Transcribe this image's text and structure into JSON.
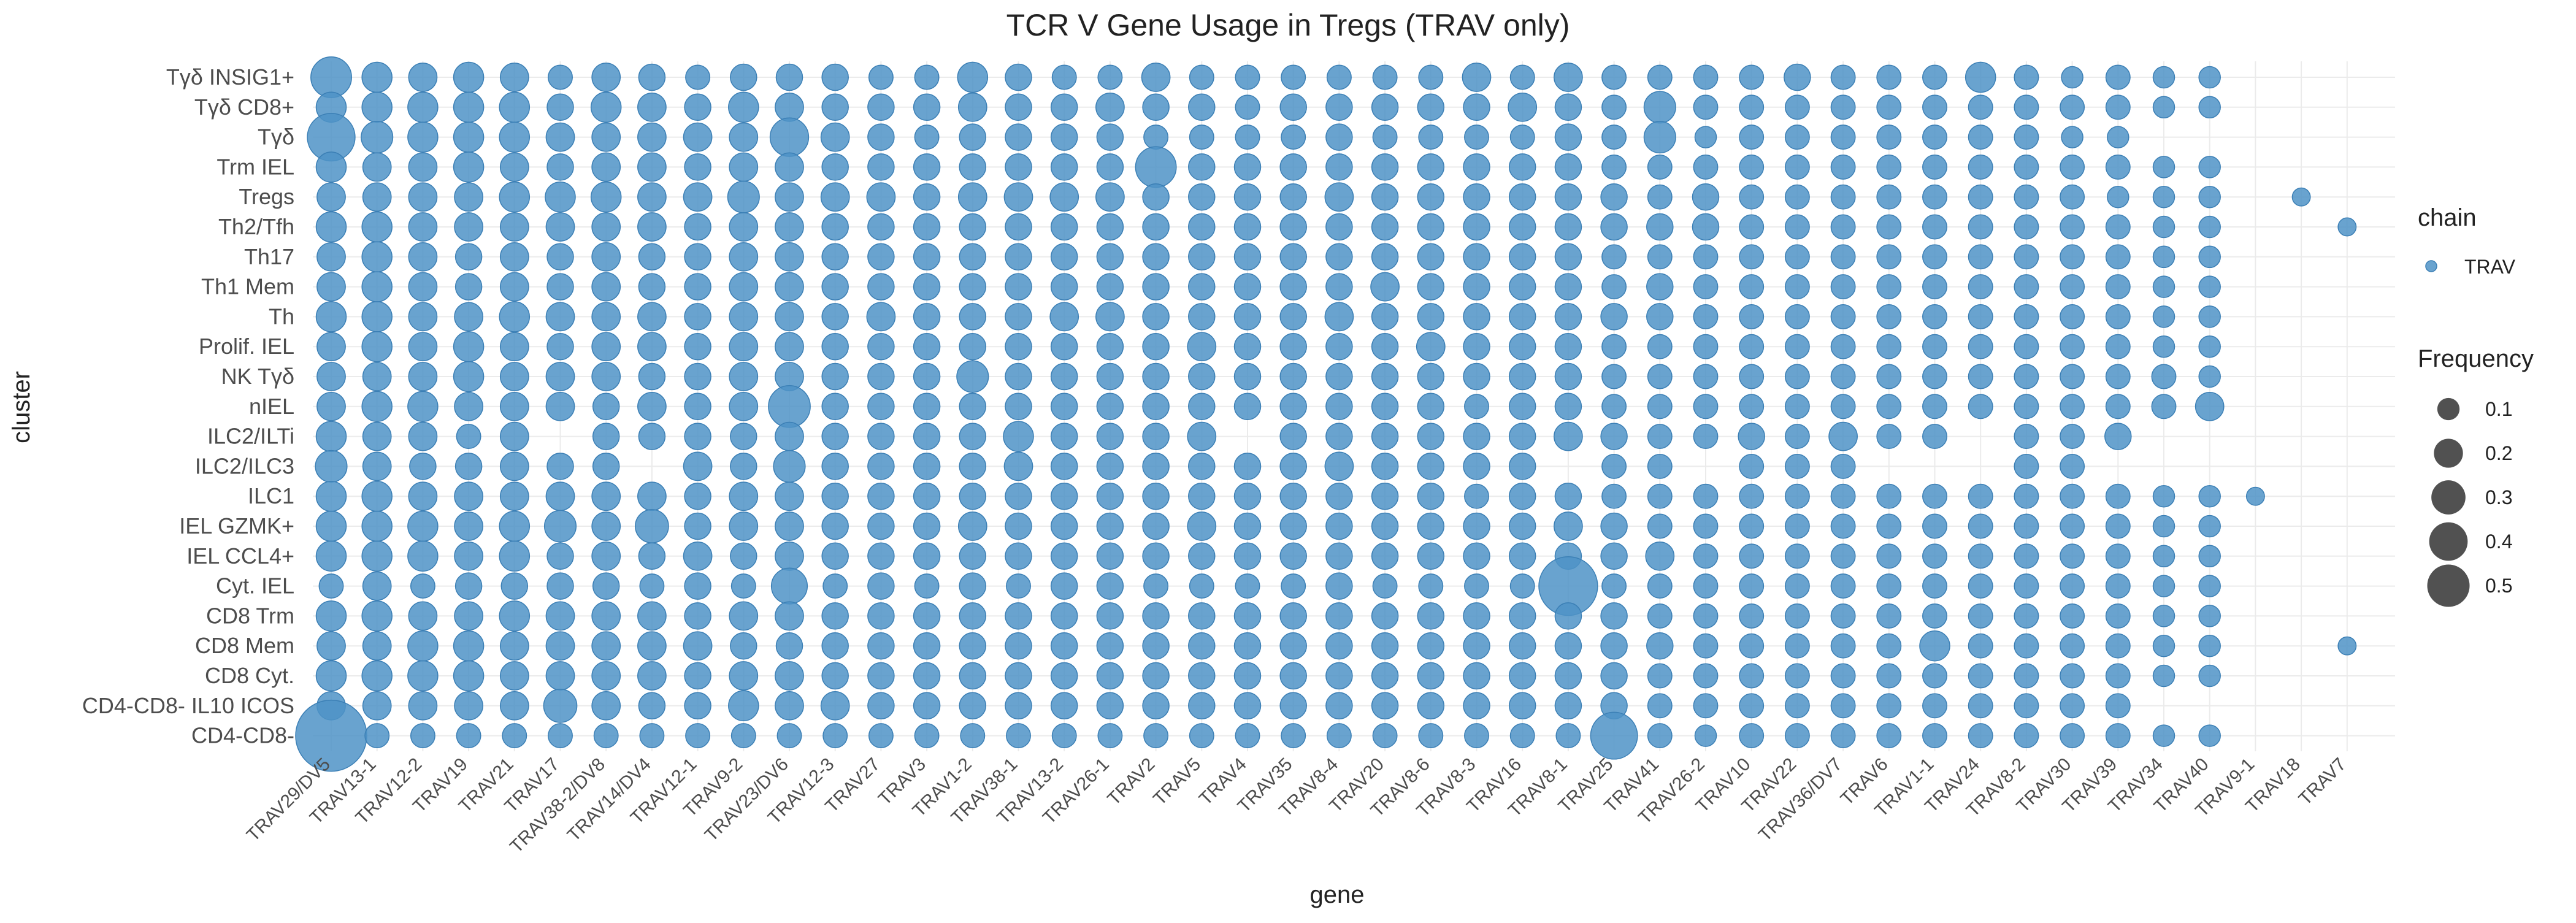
{
  "chart_data": {
    "type": "scatter",
    "title": "TCR V Gene Usage in Tregs (TRAV only)",
    "xlabel": "gene",
    "ylabel": "cluster",
    "x_categories": [
      "TRAV29/DV5",
      "TRAV13-1",
      "TRAV12-2",
      "TRAV19",
      "TRAV21",
      "TRAV17",
      "TRAV38-2/DV8",
      "TRAV14/DV4",
      "TRAV12-1",
      "TRAV9-2",
      "TRAV23/DV6",
      "TRAV12-3",
      "TRAV27",
      "TRAV3",
      "TRAV1-2",
      "TRAV38-1",
      "TRAV13-2",
      "TRAV26-1",
      "TRAV2",
      "TRAV5",
      "TRAV4",
      "TRAV35",
      "TRAV8-4",
      "TRAV20",
      "TRAV8-6",
      "TRAV8-3",
      "TRAV16",
      "TRAV8-1",
      "TRAV25",
      "TRAV41",
      "TRAV26-2",
      "TRAV10",
      "TRAV22",
      "TRAV36/DV7",
      "TRAV6",
      "TRAV1-1",
      "TRAV24",
      "TRAV8-2",
      "TRAV30",
      "TRAV39",
      "TRAV34",
      "TRAV40",
      "TRAV9-1",
      "TRAV18",
      "TRAV7"
    ],
    "y_categories": [
      "Tγδ INSIG1+",
      "Tγδ CD8+",
      "Tγδ",
      "Trm IEL",
      "Tregs",
      "Th2/Tfh",
      "Th17",
      "Th1 Mem",
      "Th",
      "Prolif. IEL",
      "NK Tγδ",
      "nIEL",
      "ILC2/ILTi",
      "ILC2/ILC3",
      "ILC1",
      "IEL GZMK+",
      "IEL CCL4+",
      "Cyt. IEL",
      "CD8 Trm",
      "CD8 Mem",
      "CD8 Cyt.",
      "CD4-CD8- IL10 ICOS",
      "CD4-CD8-"
    ],
    "frequency": [
      [
        0.14,
        0.06,
        0.05,
        0.06,
        0.05,
        0.03,
        0.05,
        0.04,
        0.03,
        0.04,
        0.04,
        0.04,
        0.03,
        0.03,
        0.06,
        0.04,
        0.03,
        0.03,
        0.05,
        0.03,
        0.03,
        0.03,
        0.03,
        0.03,
        0.03,
        0.05,
        0.03,
        0.05,
        0.03,
        0.03,
        0.03,
        0.03,
        0.04,
        0.03,
        0.03,
        0.03,
        0.06,
        0.03,
        0.02,
        0.03,
        0.02,
        0.02,
        0,
        0,
        0
      ],
      [
        0.06,
        0.06,
        0.06,
        0.06,
        0.06,
        0.04,
        0.06,
        0.05,
        0.04,
        0.06,
        0.05,
        0.04,
        0.04,
        0.04,
        0.05,
        0.04,
        0.04,
        0.05,
        0.04,
        0.04,
        0.03,
        0.04,
        0.04,
        0.04,
        0.04,
        0.04,
        0.05,
        0.04,
        0.03,
        0.07,
        0.03,
        0.03,
        0.03,
        0.03,
        0.03,
        0.03,
        0.03,
        0.03,
        0.03,
        0.03,
        0.02,
        0.02,
        0,
        0,
        0
      ],
      [
        0.21,
        0.07,
        0.06,
        0.06,
        0.06,
        0.05,
        0.05,
        0.05,
        0.05,
        0.05,
        0.12,
        0.05,
        0.04,
        0.03,
        0.04,
        0.04,
        0.04,
        0.04,
        0.03,
        0.03,
        0.03,
        0.03,
        0.04,
        0.03,
        0.03,
        0.03,
        0.03,
        0.04,
        0.03,
        0.07,
        0.02,
        0.03,
        0.03,
        0.03,
        0.03,
        0.03,
        0.03,
        0.03,
        0.02,
        0.02,
        0,
        0,
        0,
        0,
        0
      ],
      [
        0.06,
        0.05,
        0.05,
        0.06,
        0.05,
        0.04,
        0.05,
        0.05,
        0.04,
        0.05,
        0.05,
        0.04,
        0.04,
        0.04,
        0.04,
        0.04,
        0.04,
        0.04,
        0.14,
        0.04,
        0.04,
        0.04,
        0.04,
        0.04,
        0.04,
        0.04,
        0.04,
        0.04,
        0.03,
        0.03,
        0.03,
        0.03,
        0.03,
        0.03,
        0.03,
        0.03,
        0.03,
        0.03,
        0.03,
        0.03,
        0.02,
        0.02,
        0,
        0,
        0
      ],
      [
        0.05,
        0.05,
        0.05,
        0.05,
        0.06,
        0.06,
        0.06,
        0.05,
        0.05,
        0.07,
        0.05,
        0.05,
        0.05,
        0.04,
        0.05,
        0.05,
        0.05,
        0.05,
        0.04,
        0.04,
        0.04,
        0.04,
        0.05,
        0.04,
        0.04,
        0.04,
        0.04,
        0.04,
        0.04,
        0.03,
        0.04,
        0.03,
        0.03,
        0.03,
        0.03,
        0.03,
        0.03,
        0.03,
        0.03,
        0.02,
        0.02,
        0.02,
        0,
        0.01,
        0
      ],
      [
        0.06,
        0.06,
        0.05,
        0.05,
        0.05,
        0.05,
        0.05,
        0.05,
        0.04,
        0.05,
        0.05,
        0.04,
        0.04,
        0.04,
        0.04,
        0.04,
        0.04,
        0.04,
        0.04,
        0.04,
        0.04,
        0.04,
        0.04,
        0.04,
        0.04,
        0.04,
        0.04,
        0.04,
        0.04,
        0.04,
        0.04,
        0.03,
        0.03,
        0.03,
        0.03,
        0.03,
        0.03,
        0.03,
        0.03,
        0.03,
        0.02,
        0.02,
        0,
        0,
        0.01
      ],
      [
        0.05,
        0.06,
        0.05,
        0.04,
        0.05,
        0.04,
        0.05,
        0.04,
        0.04,
        0.05,
        0.05,
        0.04,
        0.04,
        0.04,
        0.04,
        0.04,
        0.04,
        0.04,
        0.04,
        0.04,
        0.04,
        0.04,
        0.04,
        0.04,
        0.04,
        0.04,
        0.04,
        0.04,
        0.03,
        0.03,
        0.03,
        0.03,
        0.03,
        0.03,
        0.03,
        0.03,
        0.03,
        0.03,
        0.03,
        0.03,
        0.02,
        0.02,
        0,
        0,
        0
      ],
      [
        0.05,
        0.06,
        0.05,
        0.04,
        0.05,
        0.04,
        0.05,
        0.04,
        0.04,
        0.05,
        0.05,
        0.04,
        0.04,
        0.04,
        0.04,
        0.04,
        0.04,
        0.04,
        0.04,
        0.04,
        0.04,
        0.04,
        0.04,
        0.05,
        0.04,
        0.04,
        0.04,
        0.04,
        0.03,
        0.04,
        0.03,
        0.03,
        0.03,
        0.03,
        0.03,
        0.03,
        0.03,
        0.03,
        0.03,
        0.03,
        0.02,
        0.02,
        0,
        0,
        0
      ],
      [
        0.06,
        0.06,
        0.05,
        0.05,
        0.06,
        0.05,
        0.05,
        0.05,
        0.04,
        0.05,
        0.05,
        0.04,
        0.05,
        0.04,
        0.04,
        0.04,
        0.05,
        0.05,
        0.04,
        0.04,
        0.04,
        0.04,
        0.05,
        0.04,
        0.04,
        0.04,
        0.04,
        0.04,
        0.04,
        0.04,
        0.03,
        0.03,
        0.03,
        0.03,
        0.03,
        0.03,
        0.03,
        0.03,
        0.03,
        0.03,
        0.02,
        0.02,
        0,
        0,
        0
      ],
      [
        0.05,
        0.06,
        0.05,
        0.06,
        0.05,
        0.04,
        0.05,
        0.05,
        0.04,
        0.05,
        0.05,
        0.04,
        0.04,
        0.04,
        0.04,
        0.04,
        0.04,
        0.04,
        0.04,
        0.05,
        0.04,
        0.04,
        0.04,
        0.04,
        0.05,
        0.04,
        0.04,
        0.04,
        0.03,
        0.03,
        0.03,
        0.03,
        0.03,
        0.03,
        0.03,
        0.03,
        0.03,
        0.03,
        0.03,
        0.03,
        0.02,
        0.02,
        0,
        0,
        0
      ],
      [
        0.05,
        0.05,
        0.05,
        0.06,
        0.05,
        0.05,
        0.05,
        0.04,
        0.04,
        0.05,
        0.05,
        0.04,
        0.04,
        0.04,
        0.07,
        0.04,
        0.04,
        0.04,
        0.04,
        0.04,
        0.04,
        0.04,
        0.04,
        0.04,
        0.04,
        0.04,
        0.04,
        0.04,
        0.03,
        0.03,
        0.03,
        0.03,
        0.03,
        0.03,
        0.03,
        0.03,
        0.03,
        0.03,
        0.03,
        0.03,
        0.03,
        0.02,
        0,
        0,
        0
      ],
      [
        0.05,
        0.06,
        0.06,
        0.05,
        0.05,
        0.05,
        0.04,
        0.05,
        0.04,
        0.05,
        0.15,
        0.04,
        0.04,
        0.04,
        0.04,
        0.04,
        0.04,
        0.04,
        0.04,
        0.04,
        0.04,
        0.04,
        0.04,
        0.04,
        0.04,
        0.03,
        0.04,
        0.04,
        0.03,
        0.03,
        0.03,
        0.03,
        0.03,
        0.03,
        0.03,
        0.03,
        0.03,
        0.03,
        0.03,
        0.03,
        0.03,
        0.05,
        0,
        0,
        0
      ],
      [
        0.06,
        0.05,
        0.05,
        0.03,
        0.05,
        0,
        0.04,
        0.04,
        0.04,
        0.04,
        0.05,
        0.04,
        0.04,
        0.04,
        0.04,
        0.06,
        0.04,
        0.04,
        0.04,
        0.05,
        0,
        0.04,
        0.04,
        0.04,
        0.04,
        0.04,
        0.04,
        0.05,
        0.04,
        0.03,
        0.03,
        0.04,
        0.03,
        0.05,
        0.03,
        0.03,
        0,
        0.03,
        0.03,
        0.04,
        0,
        0,
        0,
        0,
        0
      ],
      [
        0.07,
        0.05,
        0.04,
        0.04,
        0.05,
        0.04,
        0.04,
        0,
        0.05,
        0.04,
        0.07,
        0.04,
        0.04,
        0.04,
        0.04,
        0.05,
        0.04,
        0.04,
        0.04,
        0.04,
        0.04,
        0.04,
        0.05,
        0.04,
        0.04,
        0.04,
        0.04,
        0,
        0.03,
        0.03,
        0,
        0.03,
        0.03,
        0.03,
        0,
        0,
        0,
        0.03,
        0.03,
        0,
        0,
        0,
        0,
        0,
        0
      ],
      [
        0.06,
        0.06,
        0.05,
        0.05,
        0.05,
        0.05,
        0.05,
        0.05,
        0.04,
        0.05,
        0.05,
        0.04,
        0.04,
        0.04,
        0.04,
        0.04,
        0.04,
        0.04,
        0.04,
        0.04,
        0.04,
        0.04,
        0.04,
        0.04,
        0.04,
        0.03,
        0.04,
        0.04,
        0.03,
        0.03,
        0.03,
        0.03,
        0.03,
        0.03,
        0.03,
        0.03,
        0.03,
        0.03,
        0.03,
        0.03,
        0.02,
        0.02,
        0.01,
        0,
        0
      ],
      [
        0.06,
        0.06,
        0.06,
        0.05,
        0.06,
        0.07,
        0.05,
        0.08,
        0.04,
        0.05,
        0.05,
        0.04,
        0.04,
        0.04,
        0.05,
        0.04,
        0.04,
        0.04,
        0.04,
        0.05,
        0.04,
        0.04,
        0.04,
        0.04,
        0.04,
        0.04,
        0.04,
        0.05,
        0.04,
        0.03,
        0.03,
        0.03,
        0.03,
        0.03,
        0.03,
        0.03,
        0.03,
        0.03,
        0.03,
        0.03,
        0.02,
        0.02,
        0,
        0,
        0
      ],
      [
        0.06,
        0.06,
        0.06,
        0.05,
        0.06,
        0.04,
        0.05,
        0.04,
        0.05,
        0.04,
        0.05,
        0.04,
        0.04,
        0.04,
        0.04,
        0.04,
        0.04,
        0.04,
        0.04,
        0.04,
        0.04,
        0.04,
        0.04,
        0.04,
        0.04,
        0.04,
        0.04,
        0.04,
        0.04,
        0.05,
        0.03,
        0.03,
        0.03,
        0.03,
        0.03,
        0.03,
        0.03,
        0.03,
        0.03,
        0.03,
        0.02,
        0.02,
        0,
        0,
        0
      ],
      [
        0.03,
        0.05,
        0.03,
        0.04,
        0.04,
        0.04,
        0.04,
        0.03,
        0.04,
        0.03,
        0.1,
        0.03,
        0.04,
        0.03,
        0.04,
        0.03,
        0.04,
        0.04,
        0.03,
        0.03,
        0.03,
        0.03,
        0.04,
        0.03,
        0.03,
        0.03,
        0.03,
        0.35,
        0.03,
        0.03,
        0.03,
        0.03,
        0.03,
        0.03,
        0.03,
        0.03,
        0.03,
        0.03,
        0.03,
        0.03,
        0.02,
        0.02,
        0,
        0,
        0
      ],
      [
        0.06,
        0.06,
        0.05,
        0.05,
        0.06,
        0.05,
        0.05,
        0.05,
        0.04,
        0.05,
        0.05,
        0.04,
        0.04,
        0.04,
        0.04,
        0.04,
        0.04,
        0.04,
        0.04,
        0.04,
        0.04,
        0.04,
        0.04,
        0.04,
        0.04,
        0.04,
        0.04,
        0.04,
        0.04,
        0.03,
        0.03,
        0.03,
        0.03,
        0.03,
        0.03,
        0.03,
        0.03,
        0.03,
        0.03,
        0.03,
        0.02,
        0.02,
        0,
        0,
        0
      ],
      [
        0.05,
        0.05,
        0.06,
        0.06,
        0.05,
        0.05,
        0.05,
        0.05,
        0.05,
        0.04,
        0.04,
        0.04,
        0.04,
        0.04,
        0.04,
        0.04,
        0.04,
        0.04,
        0.04,
        0.04,
        0.04,
        0.04,
        0.04,
        0.04,
        0.04,
        0.04,
        0.04,
        0.04,
        0.04,
        0.04,
        0.03,
        0.03,
        0.03,
        0.03,
        0.03,
        0.06,
        0.03,
        0.03,
        0.03,
        0.03,
        0.02,
        0.02,
        0,
        0,
        0.01
      ],
      [
        0.06,
        0.06,
        0.06,
        0.06,
        0.05,
        0.05,
        0.05,
        0.05,
        0.04,
        0.05,
        0.05,
        0.04,
        0.04,
        0.04,
        0.04,
        0.04,
        0.04,
        0.04,
        0.04,
        0.04,
        0.04,
        0.04,
        0.04,
        0.04,
        0.04,
        0.04,
        0.04,
        0.04,
        0.04,
        0.03,
        0.03,
        0.03,
        0.03,
        0.03,
        0.03,
        0.03,
        0.03,
        0.03,
        0.03,
        0.03,
        0.02,
        0.02,
        0,
        0,
        0
      ],
      [
        0.05,
        0.05,
        0.05,
        0.05,
        0.05,
        0.08,
        0.05,
        0.04,
        0.04,
        0.06,
        0.05,
        0.05,
        0.04,
        0.04,
        0.04,
        0.04,
        0.04,
        0.04,
        0.04,
        0.04,
        0.04,
        0.04,
        0.04,
        0.04,
        0.04,
        0.04,
        0.04,
        0.04,
        0.04,
        0.03,
        0.03,
        0.03,
        0.03,
        0.03,
        0.03,
        0.03,
        0.03,
        0.03,
        0.03,
        0.03,
        0,
        0,
        0,
        0,
        0
      ],
      [
        0.55,
        0.03,
        0.03,
        0.03,
        0.03,
        0.03,
        0.03,
        0.03,
        0.03,
        0.03,
        0.03,
        0.03,
        0.03,
        0.03,
        0.03,
        0.03,
        0.03,
        0.03,
        0.03,
        0.03,
        0.03,
        0.03,
        0.03,
        0.03,
        0.03,
        0.03,
        0.03,
        0.03,
        0.2,
        0.03,
        0.02,
        0.03,
        0.03,
        0.03,
        0.03,
        0.03,
        0.03,
        0.03,
        0.03,
        0.03,
        0.02,
        0.02,
        0,
        0,
        0
      ]
    ],
    "legend_chain": {
      "title": "chain",
      "entries": [
        "TRAV"
      ]
    },
    "legend_size": {
      "title": "Frequency",
      "values": [
        0.1,
        0.2,
        0.3,
        0.4,
        0.5
      ]
    },
    "point_color": "#4f93c7",
    "legend_point_color": "#333333",
    "grid": true,
    "legend_position": "right"
  }
}
